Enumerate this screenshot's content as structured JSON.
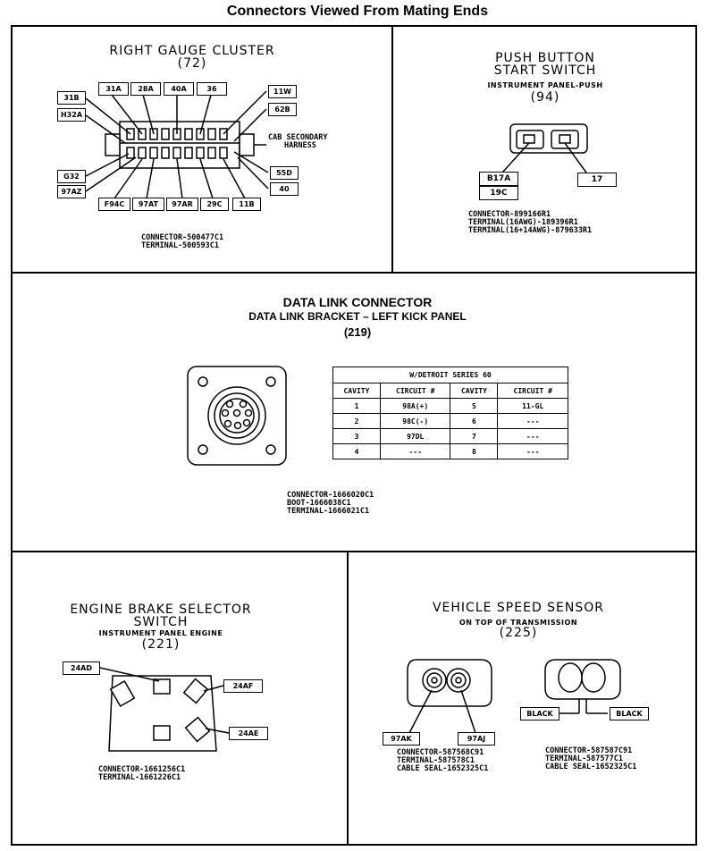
{
  "page_title": "Connectors Viewed From Mating Ends",
  "gauge_cluster": {
    "title": "RIGHT GAUGE CLUSTER",
    "number": "(72)",
    "pins_top": [
      "31A",
      "28A",
      "40A",
      "36"
    ],
    "pins_left_top": [
      "31B",
      "H32A"
    ],
    "pins_left_bottom": [
      "G32",
      "97AZ"
    ],
    "pins_bottom": [
      "F94C",
      "97AT",
      "97AR",
      "29C",
      "11B"
    ],
    "pins_right_top": [
      "11W",
      "62B"
    ],
    "pins_right_bottom": [
      "55D",
      "40"
    ],
    "harness_line1": "CAB SECONDARY",
    "harness_line2": "HARNESS",
    "connector": "CONNECTOR-500477C1",
    "terminal": "TERMINAL-500593C1"
  },
  "push_button": {
    "title_line1": "PUSH BUTTON",
    "title_line2": "START SWITCH",
    "subtitle": "INSTRUMENT PANEL-PUSH",
    "number": "(94)",
    "pins": [
      "B17A",
      "19C",
      "17"
    ],
    "connector": "CONNECTOR-899166R1",
    "terminal1": "TERMINAL(16AWG)-189396R1",
    "terminal2": "TERMINAL(16+14AWG)-879633R1"
  },
  "data_link": {
    "title": "DATA LINK CONNECTOR",
    "subtitle": "DATA LINK BRACKET – LEFT KICK PANEL",
    "number": "(219)",
    "table_title": "W/DETROIT SERIES 60",
    "headers": [
      "CAVITY",
      "CIRCUIT #",
      "CAVITY",
      "CIRCUIT #"
    ],
    "rows": [
      [
        "1",
        "98A(+)",
        "5",
        "11-GL"
      ],
      [
        "2",
        "98C(-)",
        "6",
        "---"
      ],
      [
        "3",
        "97DL",
        "7",
        "---"
      ],
      [
        "4",
        "---",
        "8",
        "---"
      ]
    ],
    "connector": "CONNECTOR-1666020C1",
    "boot": "BOOT-1666038C1",
    "terminal": "TERMINAL-1666021C1"
  },
  "engine_brake": {
    "title_line1": "ENGINE BRAKE SELECTOR",
    "title_line2": "SWITCH",
    "subtitle": "INSTRUMENT PANEL ENGINE",
    "number": "(221)",
    "pins": [
      "24AD",
      "24AF",
      "24AE"
    ],
    "connector": "CONNECTOR-1661256C1",
    "terminal": "TERMINAL-1661226C1"
  },
  "speed_sensor": {
    "title": "VEHICLE SPEED SENSOR",
    "subtitle": "ON TOP OF TRANSMISSION",
    "number": "(225)",
    "left_pins": [
      "97AK",
      "97AJ"
    ],
    "right_pins": [
      "BLACK",
      "BLACK"
    ],
    "left_connector": "CONNECTOR-587568C91",
    "left_terminal": "TERMINAL-587578C1",
    "left_seal": "CABLE SEAL-1652325C1",
    "right_connector": "CONNECTOR-587587C91",
    "right_terminal": "TERMINAL-587577C1",
    "right_seal": "CABLE SEAL-1652325C1"
  }
}
